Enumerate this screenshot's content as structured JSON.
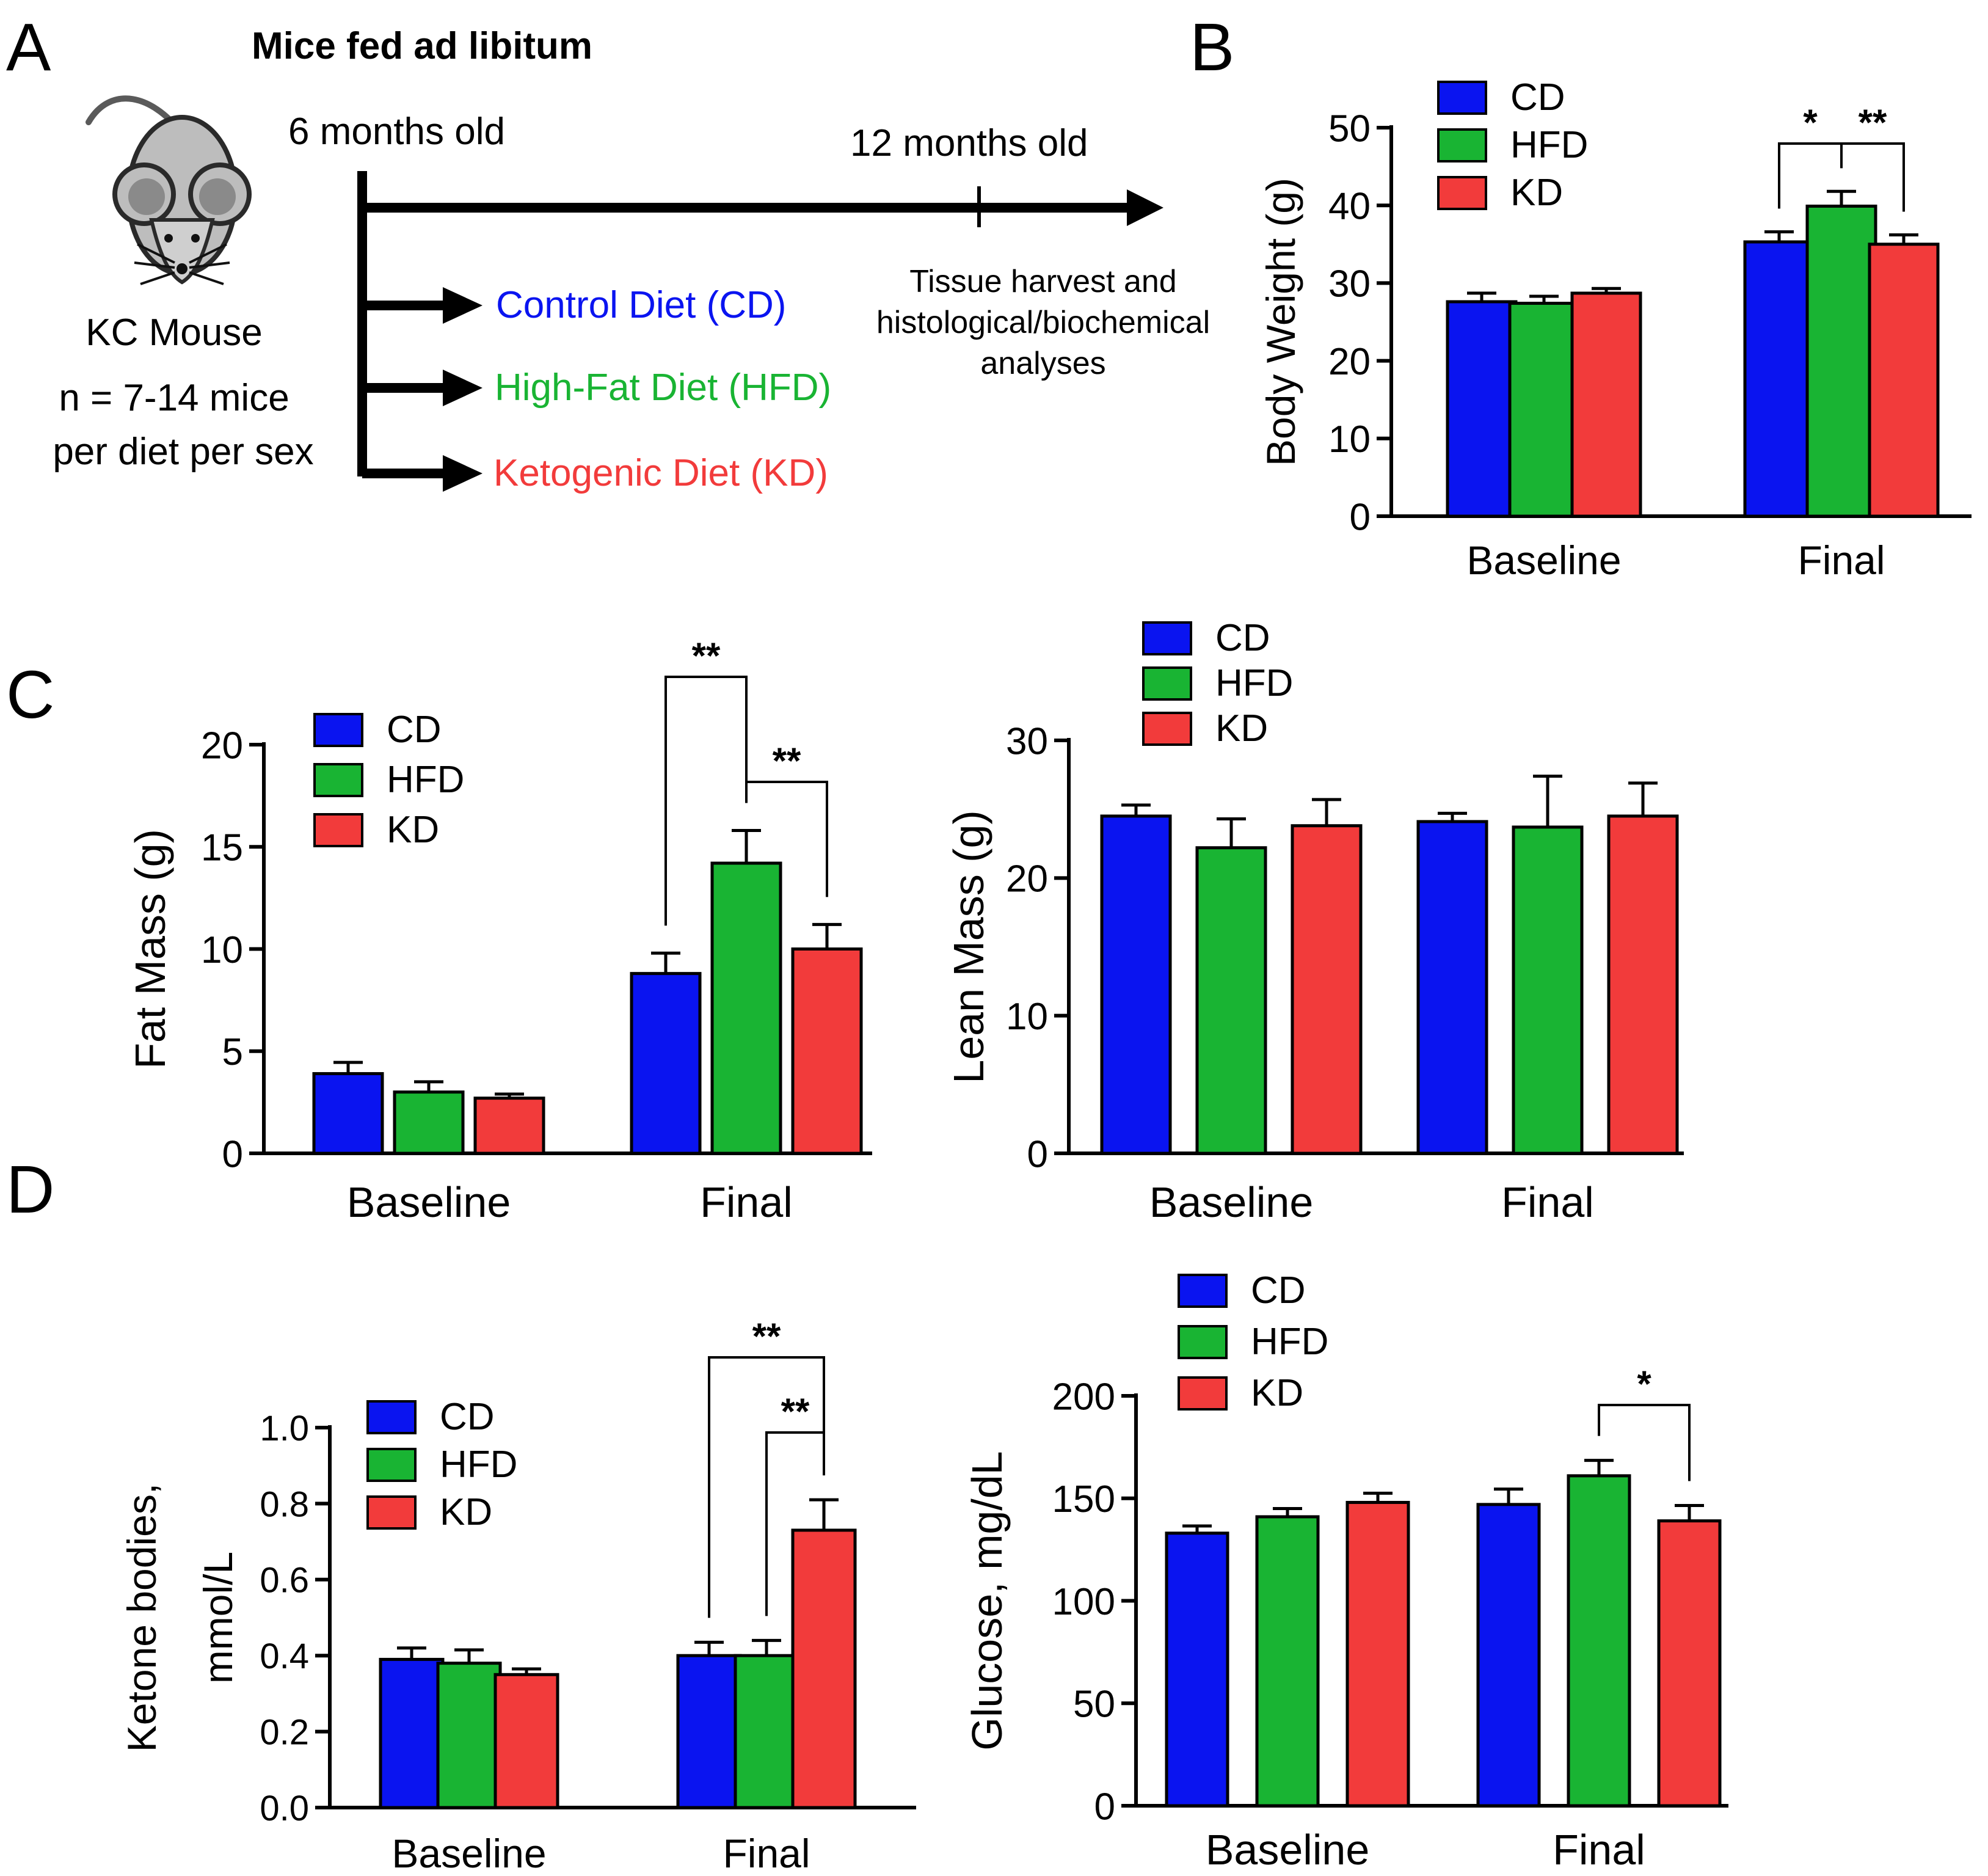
{
  "colors": {
    "CD": "#0a14f0",
    "HFD": "#19b433",
    "KD": "#f23b3b",
    "axis": "#000000"
  },
  "panel_letters": {
    "A": "A",
    "B": "B",
    "C": "C",
    "D": "D"
  },
  "schematic": {
    "header": "Mice fed ad libitum",
    "start_label": "6 months old",
    "end_label": "12 months old",
    "mouse_label": "KC Mouse",
    "n_line1": "n = 7-14 mice",
    "n_line2": "per diet per sex",
    "diets": [
      {
        "label": "Control Diet (CD)",
        "color_key": "CD"
      },
      {
        "label": "High-Fat Diet (HFD)",
        "color_key": "HFD"
      },
      {
        "label": "Ketogenic Diet (KD)",
        "color_key": "KD"
      }
    ],
    "harvest_lines": [
      "Tissue harvest and",
      "histological/biochemical",
      "analyses"
    ]
  },
  "chart_data": [
    {
      "id": "body-weight",
      "panel": "B",
      "type": "bar",
      "ylabel": [
        "Body Weight (g)"
      ],
      "ylim": [
        0,
        50
      ],
      "yticks": [
        0,
        10,
        20,
        30,
        40,
        50
      ],
      "ytick_labels": [
        "0",
        "10",
        "20",
        "30",
        "40",
        "50"
      ],
      "categories": [
        "Baseline",
        "Final"
      ],
      "series": [
        {
          "name": "CD",
          "values": [
            27.6,
            35.3
          ],
          "errors": [
            1.1,
            1.3
          ]
        },
        {
          "name": "HFD",
          "values": [
            27.4,
            39.9
          ],
          "errors": [
            0.9,
            1.9
          ]
        },
        {
          "name": "KD",
          "values": [
            28.7,
            35.0
          ],
          "errors": [
            0.6,
            1.2
          ]
        }
      ],
      "legend": [
        "CD",
        "HFD",
        "KD"
      ],
      "significance": [
        {
          "label": "*",
          "from": [
            1,
            0
          ],
          "to": [
            1,
            1
          ]
        },
        {
          "label": "**",
          "from": [
            1,
            1
          ],
          "to": [
            1,
            2
          ]
        }
      ]
    },
    {
      "id": "fat-mass",
      "panel": "C",
      "type": "bar",
      "ylabel": [
        "Fat Mass (g)"
      ],
      "ylim": [
        0,
        20
      ],
      "yticks": [
        0,
        5,
        10,
        15,
        20
      ],
      "ytick_labels": [
        "0",
        "5",
        "10",
        "15",
        "20"
      ],
      "categories": [
        "Baseline",
        "Final"
      ],
      "series": [
        {
          "name": "CD",
          "values": [
            3.9,
            8.8
          ],
          "errors": [
            0.55,
            1.0
          ]
        },
        {
          "name": "HFD",
          "values": [
            3.0,
            14.2
          ],
          "errors": [
            0.5,
            1.6
          ]
        },
        {
          "name": "KD",
          "values": [
            2.7,
            10.0
          ],
          "errors": [
            0.2,
            1.2
          ]
        }
      ],
      "legend": [
        "CD",
        "HFD",
        "KD"
      ],
      "significance": [
        {
          "label": "**",
          "from": [
            1,
            0
          ],
          "to": [
            1,
            1
          ]
        },
        {
          "label": "**",
          "from": [
            1,
            1
          ],
          "to": [
            1,
            2
          ]
        }
      ]
    },
    {
      "id": "lean-mass",
      "panel": "C",
      "type": "bar",
      "ylabel": [
        "Lean Mass (g)"
      ],
      "ylim": [
        0,
        30
      ],
      "yticks": [
        0,
        10,
        20,
        30
      ],
      "ytick_labels": [
        "0",
        "10",
        "20",
        "30"
      ],
      "categories": [
        "Baseline",
        "Final"
      ],
      "series": [
        {
          "name": "CD",
          "values": [
            24.5,
            24.1
          ],
          "errors": [
            0.8,
            0.6
          ]
        },
        {
          "name": "HFD",
          "values": [
            22.2,
            23.7
          ],
          "errors": [
            2.1,
            3.7
          ]
        },
        {
          "name": "KD",
          "values": [
            23.8,
            24.5
          ],
          "errors": [
            1.9,
            2.4
          ]
        }
      ],
      "legend": [
        "CD",
        "HFD",
        "KD"
      ],
      "significance": []
    },
    {
      "id": "ketone-bodies",
      "panel": "D",
      "type": "bar",
      "ylabel": [
        "Ketone bodies,",
        "mmol/L"
      ],
      "ylim": [
        0,
        1.0
      ],
      "yticks": [
        0,
        0.2,
        0.4,
        0.6,
        0.8,
        1.0
      ],
      "ytick_labels": [
        "0.0",
        "0.2",
        "0.4",
        "0.6",
        "0.8",
        "1.0"
      ],
      "categories": [
        "Baseline",
        "Final"
      ],
      "series": [
        {
          "name": "CD",
          "values": [
            0.39,
            0.4
          ],
          "errors": [
            0.03,
            0.035
          ]
        },
        {
          "name": "HFD",
          "values": [
            0.38,
            0.4
          ],
          "errors": [
            0.035,
            0.04
          ]
        },
        {
          "name": "KD",
          "values": [
            0.35,
            0.73
          ],
          "errors": [
            0.015,
            0.08
          ]
        }
      ],
      "legend": [
        "CD",
        "HFD",
        "KD"
      ],
      "significance": [
        {
          "label": "**",
          "from": [
            1,
            0
          ],
          "to": [
            1,
            2
          ]
        },
        {
          "label": "**",
          "from": [
            1,
            1
          ],
          "to": [
            1,
            2
          ]
        }
      ]
    },
    {
      "id": "glucose",
      "panel": "D",
      "type": "bar",
      "ylabel": [
        "Glucose, mg/dL"
      ],
      "ylim": [
        0,
        200
      ],
      "yticks": [
        0,
        50,
        100,
        150,
        200
      ],
      "ytick_labels": [
        "0",
        "50",
        "100",
        "150",
        "200"
      ],
      "categories": [
        "Baseline",
        "Final"
      ],
      "series": [
        {
          "name": "CD",
          "values": [
            133,
            147
          ],
          "errors": [
            3.5,
            7.5
          ]
        },
        {
          "name": "HFD",
          "values": [
            141,
            161
          ],
          "errors": [
            4,
            7.5
          ]
        },
        {
          "name": "KD",
          "values": [
            148,
            139
          ],
          "errors": [
            4.5,
            7.5
          ]
        }
      ],
      "legend": [
        "CD",
        "HFD",
        "KD"
      ],
      "significance": [
        {
          "label": "*",
          "from": [
            1,
            1
          ],
          "to": [
            1,
            2
          ]
        }
      ]
    }
  ]
}
